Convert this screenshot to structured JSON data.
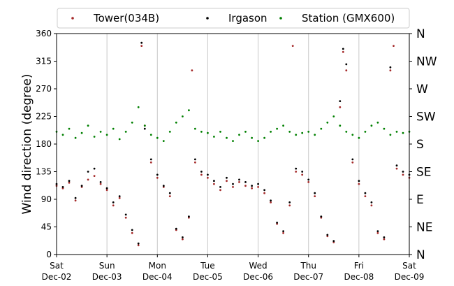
{
  "chart_data": {
    "type": "scatter",
    "title": "",
    "ylabel": "Wind direction (degree)",
    "xlabel": "",
    "ylim": [
      0,
      360
    ],
    "xlim": [
      "Dec-02",
      "Dec-09"
    ],
    "yticks": [
      0,
      45,
      90,
      135,
      180,
      225,
      270,
      315,
      360
    ],
    "right_axis_labels": [
      {
        "value": 0,
        "label": "N"
      },
      {
        "value": 45,
        "label": "NE"
      },
      {
        "value": 90,
        "label": "E"
      },
      {
        "value": 135,
        "label": "SE"
      },
      {
        "value": 180,
        "label": "S"
      },
      {
        "value": 225,
        "label": "SW"
      },
      {
        "value": 270,
        "label": "W"
      },
      {
        "value": 315,
        "label": "NW"
      },
      {
        "value": 360,
        "label": "N"
      }
    ],
    "xticks": [
      {
        "day": "Sat",
        "date": "Dec-02"
      },
      {
        "day": "Sun",
        "date": "Dec-03"
      },
      {
        "day": "Mon",
        "date": "Dec-04"
      },
      {
        "day": "Tue",
        "date": "Dec-05"
      },
      {
        "day": "Wed",
        "date": "Dec-06"
      },
      {
        "day": "Thu",
        "date": "Dec-07"
      },
      {
        "day": "Fri",
        "date": "Dec-08"
      },
      {
        "day": "Sat",
        "date": "Dec-09"
      }
    ],
    "grid": "vertical",
    "legend": {
      "position": "top",
      "columns": 3
    },
    "series": [
      {
        "name": "Tower(034B)",
        "color": "#a52a2a",
        "points": [
          [
            "Dec-02 00:00",
            112
          ],
          [
            "Dec-02 03:00",
            108
          ],
          [
            "Dec-02 06:00",
            117
          ],
          [
            "Dec-02 09:00",
            88
          ],
          [
            "Dec-02 12:00",
            110
          ],
          [
            "Dec-02 15:00",
            122
          ],
          [
            "Dec-02 18:00",
            128
          ],
          [
            "Dec-02 21:00",
            115
          ],
          [
            "Dec-03 00:00",
            105
          ],
          [
            "Dec-03 03:00",
            80
          ],
          [
            "Dec-03 06:00",
            92
          ],
          [
            "Dec-03 09:00",
            60
          ],
          [
            "Dec-03 12:00",
            35
          ],
          [
            "Dec-03 15:00",
            15
          ],
          [
            "Dec-03 16:30",
            340
          ],
          [
            "Dec-03 18:00",
            210
          ],
          [
            "Dec-03 21:00",
            150
          ],
          [
            "Dec-04 00:00",
            125
          ],
          [
            "Dec-04 03:00",
            110
          ],
          [
            "Dec-04 06:00",
            95
          ],
          [
            "Dec-04 09:00",
            40
          ],
          [
            "Dec-04 12:00",
            25
          ],
          [
            "Dec-04 15:00",
            60
          ],
          [
            "Dec-04 16:30",
            300
          ],
          [
            "Dec-04 18:00",
            150
          ],
          [
            "Dec-04 21:00",
            130
          ],
          [
            "Dec-05 00:00",
            125
          ],
          [
            "Dec-05 03:00",
            115
          ],
          [
            "Dec-05 06:00",
            105
          ],
          [
            "Dec-05 09:00",
            120
          ],
          [
            "Dec-05 12:00",
            110
          ],
          [
            "Dec-05 15:00",
            118
          ],
          [
            "Dec-05 18:00",
            112
          ],
          [
            "Dec-05 21:00",
            108
          ],
          [
            "Dec-06 00:00",
            110
          ],
          [
            "Dec-06 03:00",
            100
          ],
          [
            "Dec-06 06:00",
            85
          ],
          [
            "Dec-06 09:00",
            50
          ],
          [
            "Dec-06 12:00",
            35
          ],
          [
            "Dec-06 15:00",
            80
          ],
          [
            "Dec-06 16:30",
            340
          ],
          [
            "Dec-06 18:00",
            135
          ],
          [
            "Dec-06 21:00",
            130
          ],
          [
            "Dec-07 00:00",
            118
          ],
          [
            "Dec-07 03:00",
            95
          ],
          [
            "Dec-07 06:00",
            60
          ],
          [
            "Dec-07 09:00",
            30
          ],
          [
            "Dec-07 12:00",
            20
          ],
          [
            "Dec-07 15:00",
            240
          ],
          [
            "Dec-07 16:30",
            330
          ],
          [
            "Dec-07 18:00",
            300
          ],
          [
            "Dec-07 21:00",
            150
          ],
          [
            "Dec-08 00:00",
            115
          ],
          [
            "Dec-08 03:00",
            95
          ],
          [
            "Dec-08 06:00",
            80
          ],
          [
            "Dec-08 09:00",
            35
          ],
          [
            "Dec-08 12:00",
            25
          ],
          [
            "Dec-08 15:00",
            300
          ],
          [
            "Dec-08 16:30",
            340
          ],
          [
            "Dec-08 18:00",
            140
          ],
          [
            "Dec-08 21:00",
            130
          ],
          [
            "Dec-09 00:00",
            125
          ]
        ]
      },
      {
        "name": "Irgason",
        "color": "#000000",
        "points": [
          [
            "Dec-02 00:00",
            115
          ],
          [
            "Dec-02 03:00",
            110
          ],
          [
            "Dec-02 06:00",
            120
          ],
          [
            "Dec-02 09:00",
            92
          ],
          [
            "Dec-02 12:00",
            112
          ],
          [
            "Dec-02 15:00",
            135
          ],
          [
            "Dec-02 18:00",
            140
          ],
          [
            "Dec-02 21:00",
            118
          ],
          [
            "Dec-03 00:00",
            108
          ],
          [
            "Dec-03 03:00",
            85
          ],
          [
            "Dec-03 06:00",
            95
          ],
          [
            "Dec-03 09:00",
            65
          ],
          [
            "Dec-03 12:00",
            40
          ],
          [
            "Dec-03 15:00",
            18
          ],
          [
            "Dec-03 16:30",
            345
          ],
          [
            "Dec-03 18:00",
            205
          ],
          [
            "Dec-03 21:00",
            155
          ],
          [
            "Dec-04 00:00",
            130
          ],
          [
            "Dec-04 03:00",
            112
          ],
          [
            "Dec-04 06:00",
            100
          ],
          [
            "Dec-04 09:00",
            42
          ],
          [
            "Dec-04 12:00",
            28
          ],
          [
            "Dec-04 15:00",
            62
          ],
          [
            "Dec-04 18:00",
            155
          ],
          [
            "Dec-04 21:00",
            135
          ],
          [
            "Dec-05 00:00",
            130
          ],
          [
            "Dec-05 03:00",
            120
          ],
          [
            "Dec-05 06:00",
            110
          ],
          [
            "Dec-05 09:00",
            125
          ],
          [
            "Dec-05 12:00",
            115
          ],
          [
            "Dec-05 15:00",
            122
          ],
          [
            "Dec-05 18:00",
            118
          ],
          [
            "Dec-05 21:00",
            112
          ],
          [
            "Dec-06 00:00",
            115
          ],
          [
            "Dec-06 03:00",
            105
          ],
          [
            "Dec-06 06:00",
            88
          ],
          [
            "Dec-06 09:00",
            52
          ],
          [
            "Dec-06 12:00",
            38
          ],
          [
            "Dec-06 15:00",
            85
          ],
          [
            "Dec-06 18:00",
            140
          ],
          [
            "Dec-06 21:00",
            135
          ],
          [
            "Dec-07 00:00",
            122
          ],
          [
            "Dec-07 03:00",
            100
          ],
          [
            "Dec-07 06:00",
            62
          ],
          [
            "Dec-07 09:00",
            32
          ],
          [
            "Dec-07 12:00",
            22
          ],
          [
            "Dec-07 15:00",
            250
          ],
          [
            "Dec-07 16:30",
            335
          ],
          [
            "Dec-07 18:00",
            310
          ],
          [
            "Dec-07 21:00",
            155
          ],
          [
            "Dec-08 00:00",
            120
          ],
          [
            "Dec-08 03:00",
            100
          ],
          [
            "Dec-08 06:00",
            85
          ],
          [
            "Dec-08 09:00",
            38
          ],
          [
            "Dec-08 12:00",
            28
          ],
          [
            "Dec-08 15:00",
            305
          ],
          [
            "Dec-08 18:00",
            145
          ],
          [
            "Dec-08 21:00",
            135
          ],
          [
            "Dec-09 00:00",
            130
          ]
        ]
      },
      {
        "name": "Station (GMX600)",
        "color": "#008000",
        "points": [
          [
            "Dec-02 00:00",
            200
          ],
          [
            "Dec-02 03:00",
            195
          ],
          [
            "Dec-02 06:00",
            205
          ],
          [
            "Dec-02 09:00",
            190
          ],
          [
            "Dec-02 12:00",
            198
          ],
          [
            "Dec-02 15:00",
            210
          ],
          [
            "Dec-02 18:00",
            192
          ],
          [
            "Dec-02 21:00",
            200
          ],
          [
            "Dec-03 00:00",
            195
          ],
          [
            "Dec-03 03:00",
            205
          ],
          [
            "Dec-03 06:00",
            188
          ],
          [
            "Dec-03 09:00",
            200
          ],
          [
            "Dec-03 12:00",
            215
          ],
          [
            "Dec-03 15:00",
            240
          ],
          [
            "Dec-03 18:00",
            210
          ],
          [
            "Dec-03 21:00",
            195
          ],
          [
            "Dec-04 00:00",
            190
          ],
          [
            "Dec-04 03:00",
            185
          ],
          [
            "Dec-04 06:00",
            200
          ],
          [
            "Dec-04 09:00",
            215
          ],
          [
            "Dec-04 12:00",
            225
          ],
          [
            "Dec-04 15:00",
            235
          ],
          [
            "Dec-04 18:00",
            205
          ],
          [
            "Dec-04 21:00",
            200
          ],
          [
            "Dec-05 00:00",
            198
          ],
          [
            "Dec-05 03:00",
            192
          ],
          [
            "Dec-05 06:00",
            200
          ],
          [
            "Dec-05 09:00",
            190
          ],
          [
            "Dec-05 12:00",
            185
          ],
          [
            "Dec-05 15:00",
            195
          ],
          [
            "Dec-05 18:00",
            200
          ],
          [
            "Dec-05 21:00",
            190
          ],
          [
            "Dec-06 00:00",
            185
          ],
          [
            "Dec-06 03:00",
            190
          ],
          [
            "Dec-06 06:00",
            200
          ],
          [
            "Dec-06 09:00",
            205
          ],
          [
            "Dec-06 12:00",
            210
          ],
          [
            "Dec-06 15:00",
            200
          ],
          [
            "Dec-06 18:00",
            195
          ],
          [
            "Dec-06 21:00",
            198
          ],
          [
            "Dec-07 00:00",
            200
          ],
          [
            "Dec-07 03:00",
            195
          ],
          [
            "Dec-07 06:00",
            205
          ],
          [
            "Dec-07 09:00",
            215
          ],
          [
            "Dec-07 12:00",
            225
          ],
          [
            "Dec-07 15:00",
            210
          ],
          [
            "Dec-07 18:00",
            200
          ],
          [
            "Dec-07 21:00",
            195
          ],
          [
            "Dec-08 00:00",
            190
          ],
          [
            "Dec-08 03:00",
            200
          ],
          [
            "Dec-08 06:00",
            210
          ],
          [
            "Dec-08 09:00",
            215
          ],
          [
            "Dec-08 12:00",
            205
          ],
          [
            "Dec-08 15:00",
            195
          ],
          [
            "Dec-08 18:00",
            200
          ],
          [
            "Dec-08 21:00",
            198
          ],
          [
            "Dec-09 00:00",
            200
          ]
        ]
      }
    ]
  }
}
